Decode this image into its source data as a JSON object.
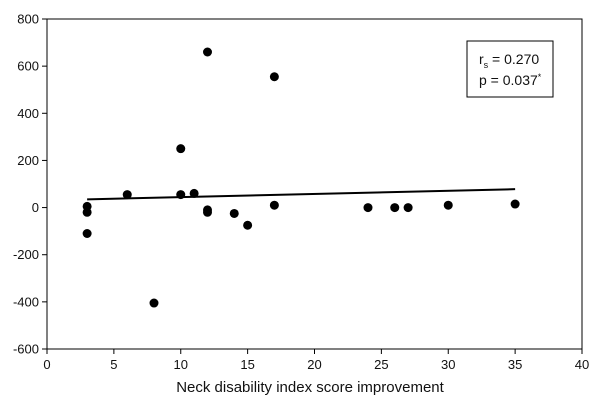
{
  "chart_data": {
    "type": "scatter",
    "title": "",
    "xlabel": "Neck disability index score improvement",
    "ylabel": "",
    "xlim": [
      0,
      40
    ],
    "ylim": [
      -600,
      800
    ],
    "x_ticks": [
      0,
      5,
      10,
      15,
      20,
      25,
      30,
      35,
      40
    ],
    "y_ticks": [
      800,
      600,
      400,
      200,
      0,
      -200,
      -400,
      -600
    ],
    "grid": false,
    "points": [
      {
        "x": 3,
        "y": 5
      },
      {
        "x": 3,
        "y": -20
      },
      {
        "x": 3,
        "y": -110
      },
      {
        "x": 6,
        "y": 55
      },
      {
        "x": 8,
        "y": -405
      },
      {
        "x": 10,
        "y": 250
      },
      {
        "x": 10,
        "y": 55
      },
      {
        "x": 11,
        "y": 60
      },
      {
        "x": 12,
        "y": 660
      },
      {
        "x": 12,
        "y": -10
      },
      {
        "x": 12,
        "y": -20
      },
      {
        "x": 14,
        "y": -25
      },
      {
        "x": 15,
        "y": -75
      },
      {
        "x": 17,
        "y": 555
      },
      {
        "x": 17,
        "y": 10
      },
      {
        "x": 24,
        "y": 0
      },
      {
        "x": 26,
        "y": 0
      },
      {
        "x": 27,
        "y": 0
      },
      {
        "x": 30,
        "y": 10
      },
      {
        "x": 35,
        "y": 15
      }
    ],
    "trend_line": {
      "x": [
        3,
        35
      ],
      "y": [
        35,
        78
      ]
    },
    "annotation": {
      "r_main": "r",
      "r_sub": "s",
      "r_value": " = 0.270",
      "p_text": "p = 0.037",
      "p_mark": "*"
    }
  }
}
